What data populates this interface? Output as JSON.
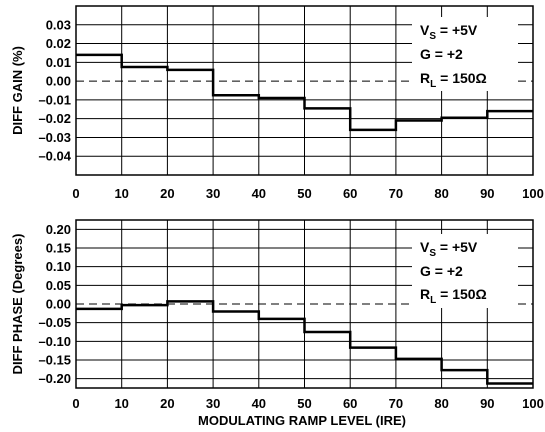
{
  "chart_data": [
    {
      "type": "line",
      "step": true,
      "xlabel": "",
      "ylabel": "DIFF GAIN (%)",
      "xlim": [
        0,
        100
      ],
      "ylim": [
        -0.05,
        0.04
      ],
      "xticks": [
        0,
        10,
        20,
        30,
        40,
        50,
        60,
        70,
        80,
        90,
        100
      ],
      "yticks": [
        -0.04,
        -0.03,
        -0.02,
        -0.01,
        0.0,
        0.01,
        0.02,
        0.03
      ],
      "ytick_labels": [
        "–0.04",
        "–0.03",
        "–0.02",
        "–0.01",
        "0.00",
        "0.01",
        "0.02",
        "0.03"
      ],
      "grid": true,
      "zero_line": "dashed",
      "series": [
        {
          "segments": [
            {
              "x0": 0,
              "x1": 10,
              "y": 0.014
            },
            {
              "x0": 10,
              "x1": 20,
              "y": 0.0075
            },
            {
              "x0": 20,
              "x1": 30,
              "y": 0.006
            },
            {
              "x0": 30,
              "x1": 40,
              "y": -0.0075
            },
            {
              "x0": 40,
              "x1": 50,
              "y": -0.009
            },
            {
              "x0": 50,
              "x1": 60,
              "y": -0.0145
            },
            {
              "x0": 60,
              "x1": 70,
              "y": -0.026
            },
            {
              "x0": 70,
              "x1": 80,
              "y": -0.021
            },
            {
              "x0": 80,
              "x1": 90,
              "y": -0.0195
            },
            {
              "x0": 90,
              "x1": 100,
              "y": -0.016
            }
          ]
        }
      ],
      "annotations": [
        {
          "main": "V",
          "sub": "S",
          "rest": " = +5V"
        },
        {
          "main": "G = +2",
          "sub": "",
          "rest": ""
        },
        {
          "main": "R",
          "sub": "L",
          "rest": " = 150Ω"
        }
      ]
    },
    {
      "type": "line",
      "step": true,
      "xlabel": "MODULATING RAMP LEVEL (IRE)",
      "ylabel": "DIFF PHASE (Degrees)",
      "xlim": [
        0,
        100
      ],
      "ylim": [
        -0.225,
        0.225
      ],
      "xticks": [
        0,
        10,
        20,
        30,
        40,
        50,
        60,
        70,
        80,
        90,
        100
      ],
      "yticks": [
        -0.2,
        -0.15,
        -0.1,
        -0.05,
        0.0,
        0.05,
        0.1,
        0.15,
        0.2
      ],
      "ytick_labels": [
        "–0.20",
        "–0.15",
        "–0.10",
        "–0.05",
        "0.00",
        "0.05",
        "0.10",
        "0.15",
        "0.20"
      ],
      "grid": true,
      "zero_line": "dashed",
      "series": [
        {
          "segments": [
            {
              "x0": 0,
              "x1": 10,
              "y": -0.013
            },
            {
              "x0": 10,
              "x1": 20,
              "y": -0.003
            },
            {
              "x0": 20,
              "x1": 30,
              "y": 0.007
            },
            {
              "x0": 30,
              "x1": 40,
              "y": -0.02
            },
            {
              "x0": 40,
              "x1": 50,
              "y": -0.04
            },
            {
              "x0": 50,
              "x1": 60,
              "y": -0.075
            },
            {
              "x0": 60,
              "x1": 70,
              "y": -0.117
            },
            {
              "x0": 70,
              "x1": 80,
              "y": -0.147
            },
            {
              "x0": 80,
              "x1": 90,
              "y": -0.177
            },
            {
              "x0": 90,
              "x1": 100,
              "y": -0.213
            }
          ]
        }
      ],
      "annotations": [
        {
          "main": "V",
          "sub": "S",
          "rest": " = +5V"
        },
        {
          "main": "G = +2",
          "sub": "",
          "rest": ""
        },
        {
          "main": "R",
          "sub": "L",
          "rest": " = 150Ω"
        }
      ]
    }
  ]
}
